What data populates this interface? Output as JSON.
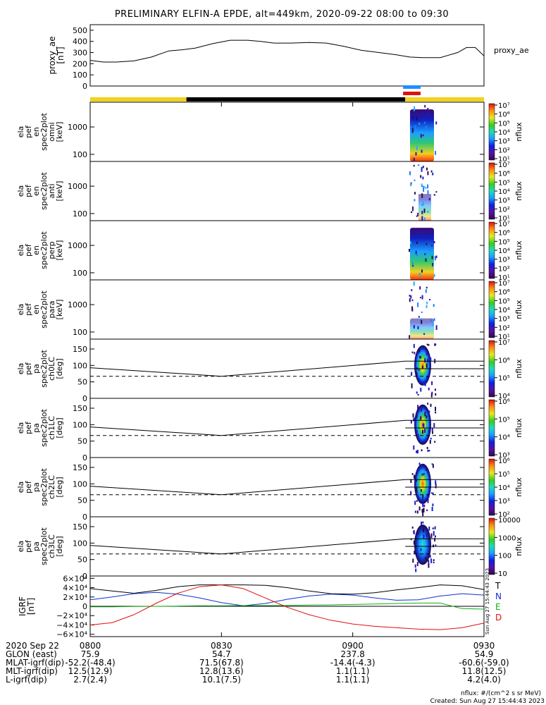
{
  "title": "PRELIMINARY ELFIN-A EPDE, alt=449km, 2020-09-22 08:00 to 09:30",
  "colors": {
    "yellow": "#f2d21c",
    "black": "#000000",
    "blue_bar": "#1e90ff",
    "red_bar": "#e01010",
    "trace_black": "#000000",
    "trace_blue": "#1030d0",
    "trace_green": "#10b010",
    "trace_red": "#e01010"
  },
  "chart_data": [
    {
      "type": "line",
      "name": "proxy_ae",
      "ylabel_lines": [
        "proxy_ae",
        "[nT]"
      ],
      "legend": "proxy_ae",
      "ylim": [
        0,
        550
      ],
      "yticks": [
        "0",
        "100",
        "200",
        "300",
        "400",
        "500"
      ],
      "x_minutes": [
        0,
        3,
        6,
        10,
        14,
        18,
        21,
        24,
        28,
        32,
        36,
        39,
        42,
        46,
        50,
        54,
        58,
        62,
        66,
        70,
        73,
        76,
        80,
        84,
        86,
        88,
        90
      ],
      "values": [
        230,
        215,
        215,
        225,
        260,
        315,
        325,
        340,
        380,
        410,
        410,
        400,
        385,
        385,
        390,
        385,
        355,
        320,
        300,
        280,
        260,
        255,
        255,
        300,
        345,
        345,
        270
      ]
    },
    {
      "type": "heatmap",
      "name": "orbit_bar",
      "segments": [
        {
          "from": 0,
          "to": 22,
          "color": "yellow"
        },
        {
          "from": 22,
          "to": 72,
          "color": "black"
        },
        {
          "from": 72,
          "to": 90,
          "color": "yellow"
        }
      ],
      "markers": [
        {
          "from": 71.5,
          "to": 75.5,
          "color": "blue_bar"
        },
        {
          "from": 71.5,
          "to": 75.5,
          "color": "red_bar"
        }
      ]
    },
    {
      "type": "heatmap",
      "name": "ela_pef_en_spec2plot_omni",
      "ylabel_lines": [
        "ela",
        "pef",
        "en",
        "spec2plot",
        "omni",
        "[keV]"
      ],
      "yscale": "log",
      "yticks": [
        "100",
        "1000"
      ],
      "colorbar_ticks": [
        "10¹",
        "10²",
        "10³",
        "10⁴",
        "10⁵",
        "10⁶",
        "10⁷"
      ],
      "zlabel": "nflux"
    },
    {
      "type": "heatmap",
      "name": "ela_pef_en_spec2plot_anti",
      "ylabel_lines": [
        "ela",
        "pef",
        "en",
        "spec2plot",
        "anti",
        "[keV]"
      ],
      "yscale": "log",
      "yticks": [
        "100",
        "1000"
      ],
      "colorbar_ticks": [
        "10¹",
        "10²",
        "10³",
        "10⁴",
        "10⁵",
        "10⁶",
        "10⁷"
      ],
      "zlabel": "nflux"
    },
    {
      "type": "heatmap",
      "name": "ela_pef_en_spec2plot_perp",
      "ylabel_lines": [
        "ela",
        "pef",
        "en",
        "spec2plot",
        "perp",
        "[keV]"
      ],
      "yscale": "log",
      "yticks": [
        "100",
        "1000"
      ],
      "colorbar_ticks": [
        "10¹",
        "10²",
        "10³",
        "10⁴",
        "10⁵",
        "10⁶",
        "10⁷"
      ],
      "zlabel": "nflux"
    },
    {
      "type": "heatmap",
      "name": "ela_pef_en_spec2plot_para",
      "ylabel_lines": [
        "ela",
        "pef",
        "en",
        "spec2plot",
        "para",
        "[keV]"
      ],
      "yscale": "log",
      "yticks": [
        "100",
        "1000"
      ],
      "colorbar_ticks": [
        "10¹",
        "10²",
        "10³",
        "10⁴",
        "10⁵",
        "10⁶",
        "10⁷"
      ],
      "zlabel": "nflux"
    },
    {
      "type": "heatmap",
      "name": "ela_pef_pa_spec2plot_ch0LC",
      "ylabel_lines": [
        "ela",
        "pef",
        "pa",
        "spec2plot",
        "ch0LC",
        "[deg]"
      ],
      "ylim": [
        0,
        180
      ],
      "yticks": [
        "0",
        "50",
        "100",
        "150"
      ],
      "colorbar_ticks": [
        "10⁴",
        "10⁵",
        "10⁶",
        "10⁷"
      ],
      "zlabel": "nflux"
    },
    {
      "type": "heatmap",
      "name": "ela_pef_pa_spec2plot_ch1LC",
      "ylabel_lines": [
        "ela",
        "pef",
        "pa",
        "spec2plot",
        "ch1LC",
        "[deg]"
      ],
      "ylim": [
        0,
        180
      ],
      "yticks": [
        "0",
        "50",
        "100",
        "150"
      ],
      "colorbar_ticks": [
        "10³",
        "10⁴",
        "10⁵",
        "10⁶"
      ],
      "zlabel": "nflux"
    },
    {
      "type": "heatmap",
      "name": "ela_pef_pa_spec2plot_ch2LC",
      "ylabel_lines": [
        "ela",
        "pef",
        "pa",
        "spec2plot",
        "ch2LC",
        "[deg]"
      ],
      "ylim": [
        0,
        180
      ],
      "yticks": [
        "0",
        "50",
        "100",
        "150"
      ],
      "colorbar_ticks": [
        "10²",
        "10³",
        "10⁴",
        "10⁵",
        "10⁶"
      ],
      "zlabel": "nflux"
    },
    {
      "type": "heatmap",
      "name": "ela_pef_pa_spec2plot_ch3LC",
      "ylabel_lines": [
        "ela",
        "pef",
        "pa",
        "spec2plot",
        "ch3LC",
        "[deg]"
      ],
      "ylim": [
        0,
        180
      ],
      "yticks": [
        "0",
        "50",
        "100",
        "150"
      ],
      "colorbar_ticks": [
        "10",
        "100",
        "1000",
        "10000"
      ],
      "zlabel": "nflux"
    },
    {
      "type": "line",
      "name": "IGRF",
      "ylabel_lines": [
        "IGRF",
        "[nT]"
      ],
      "ylim": [
        -65000,
        65000
      ],
      "yticks": [
        "−6×10⁴",
        "−4×10⁴",
        "−2×10⁴",
        "0",
        "2×10⁴",
        "4×10⁴",
        "6×10⁴"
      ],
      "legend": [
        "T",
        "N",
        "E",
        "D"
      ],
      "x_minutes": [
        0,
        5,
        10,
        15,
        20,
        25,
        30,
        35,
        40,
        45,
        50,
        55,
        60,
        65,
        70,
        75,
        80,
        85,
        90
      ],
      "series": [
        {
          "name": "T",
          "color": "trace_black",
          "values": [
            38000,
            33000,
            28000,
            34000,
            42000,
            46000,
            46000,
            46000,
            45000,
            40000,
            33000,
            27000,
            26000,
            29000,
            35000,
            40000,
            46000,
            44000,
            36000
          ]
        },
        {
          "name": "N",
          "color": "trace_blue",
          "values": [
            14000,
            20000,
            27000,
            30000,
            26000,
            18000,
            8000,
            1000,
            6000,
            15000,
            22000,
            26000,
            24000,
            18000,
            13000,
            14000,
            22000,
            27000,
            24000
          ]
        },
        {
          "name": "E",
          "color": "trace_green",
          "values": [
            -1000,
            -1000,
            -500,
            0,
            500,
            1000,
            1000,
            1500,
            1500,
            2000,
            2500,
            3000,
            4000,
            5000,
            6000,
            7000,
            7000,
            -5000,
            -6000
          ]
        },
        {
          "name": "D",
          "color": "trace_red",
          "values": [
            -40000,
            -35000,
            -18000,
            6000,
            28000,
            42000,
            46000,
            38000,
            18000,
            -2000,
            -18000,
            -30000,
            -38000,
            -43000,
            -46000,
            -49000,
            -50000,
            -46000,
            -36000
          ]
        }
      ]
    }
  ],
  "xaxis": {
    "tick_labels": [
      "0800",
      "0830",
      "0900",
      "0930"
    ],
    "rows": [
      {
        "label": "2020 Sep 22",
        "values": [
          "0800",
          "0830",
          "0900",
          "0930"
        ]
      },
      {
        "label": "GLON (east)",
        "values": [
          "75.9",
          "54.7",
          "237.8",
          "54.9"
        ]
      },
      {
        "label": "MLAT-igrf(dip)",
        "values": [
          "-52.2(-48.4)",
          "71.5(67.8)",
          "-14.4(-4.3)",
          "-60.6(-59.0)"
        ]
      },
      {
        "label": "MLT-igrf(dip)",
        "values": [
          "12.5(12.9)",
          "12.8(13.6)",
          "1.1(1.1)",
          "11.8(12.5)"
        ]
      },
      {
        "label": "L-igrf(dip)",
        "values": [
          "2.7(2.4)",
          "10.1(7.5)",
          "1.1(1.1)",
          "4.2(4.0)"
        ]
      }
    ]
  },
  "footer": {
    "units": "nflux: #/(cm^2 s sr MeV)",
    "created": "Created: Sun Aug 27 15:44:43 2023",
    "side_stamp": "Sun Aug 27 15:44:43 2023"
  }
}
